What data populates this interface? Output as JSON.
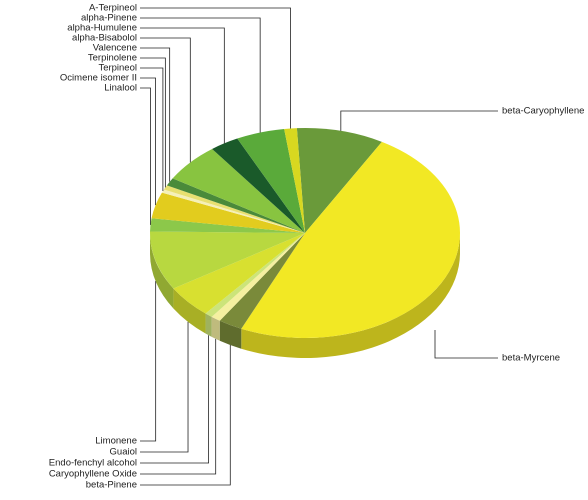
{
  "chart_data": {
    "type": "pie",
    "categories": [
      "beta-Caryophyllene",
      "beta-Myrcene",
      "beta-Pinene",
      "Caryophyllene Oxide",
      "Endo-fenchyl alcohol",
      "Guaiol",
      "Limonene",
      "Linalool",
      "Ocimene isomer II",
      "Terpineol",
      "Terpinolene",
      "Valencene",
      "alpha-Bisabolol",
      "alpha-Humulene",
      "alpha-Pinene",
      "A-Terpineol"
    ],
    "values": [
      9,
      48,
      2.5,
      1,
      0.8,
      5,
      9,
      2,
      4,
      0.5,
      0.7,
      1.2,
      6,
      3,
      5,
      1.3
    ],
    "colors": [
      "#6a9a3a",
      "#f2e824",
      "#7a8a3a",
      "#f5f0a0",
      "#cce47a",
      "#d8e030",
      "#b8d840",
      "#8cc84a",
      "#e2cc1e",
      "#f5f0b8",
      "#e8e070",
      "#4a8a3a",
      "#88c440",
      "#1a5a2a",
      "#5aaa3a",
      "#d8d820"
    ]
  }
}
